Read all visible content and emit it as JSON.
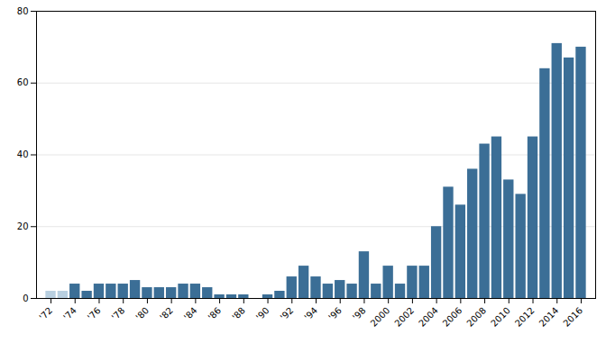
{
  "chart_data": {
    "type": "bar",
    "series": [
      {
        "color": "#b8cfe0",
        "x": [
          1972,
          1973
        ],
        "values": [
          2,
          2
        ]
      },
      {
        "color": "#3b6e96",
        "x": [
          1974,
          1975,
          1976,
          1977,
          1978,
          1979,
          1980,
          1981,
          1982,
          1983,
          1984,
          1985,
          1986,
          1987,
          1988,
          1989,
          1990,
          1991,
          1992,
          1993,
          1994,
          1995,
          1996,
          1997,
          1998,
          1999,
          2000,
          2001,
          2002,
          2003,
          2004,
          2005,
          2006,
          2007,
          2008,
          2009,
          2010,
          2011,
          2012,
          2013,
          2014,
          2015,
          2016
        ],
        "values": [
          4,
          2,
          4,
          4,
          4,
          5,
          3,
          3,
          3,
          4,
          4,
          3,
          1,
          1,
          1,
          0,
          1,
          2,
          6,
          9,
          6,
          4,
          5,
          4,
          13,
          4,
          9,
          4,
          9,
          9,
          20,
          31,
          26,
          36,
          43,
          45,
          33,
          29,
          45,
          64,
          71,
          67,
          70
        ]
      }
    ],
    "xlim": [
      1970.8,
      2017.2
    ],
    "xticks": [
      {
        "value": 1972,
        "label": "'72"
      },
      {
        "value": 1974,
        "label": "'74"
      },
      {
        "value": 1976,
        "label": "'76"
      },
      {
        "value": 1978,
        "label": "'78"
      },
      {
        "value": 1980,
        "label": "'80"
      },
      {
        "value": 1982,
        "label": "'82"
      },
      {
        "value": 1984,
        "label": "'84"
      },
      {
        "value": 1986,
        "label": "'86"
      },
      {
        "value": 1988,
        "label": "'88"
      },
      {
        "value": 1990,
        "label": "'90"
      },
      {
        "value": 1992,
        "label": "'92"
      },
      {
        "value": 1994,
        "label": "'94"
      },
      {
        "value": 1996,
        "label": "'96"
      },
      {
        "value": 1998,
        "label": "'98"
      },
      2000,
      2002,
      2004,
      2006,
      2008,
      2010,
      2012,
      2014,
      2016
    ],
    "ylim": [
      0,
      80
    ],
    "yticks": [
      0,
      20,
      40,
      60,
      80
    ],
    "grid": true
  }
}
